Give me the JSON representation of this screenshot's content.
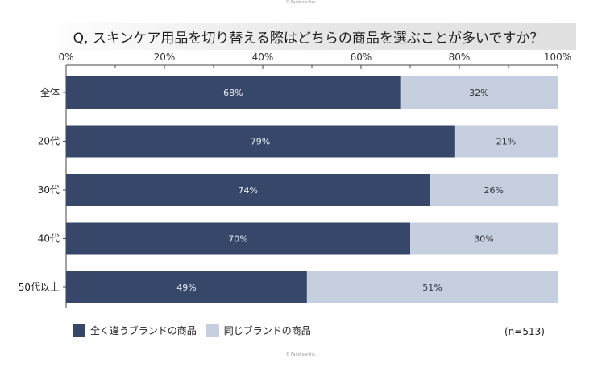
{
  "credit": "© Fandrew Inc.",
  "note": "(n=513)",
  "colors": {
    "series_a": "#36476a",
    "series_b": "#c5cfe0"
  },
  "chart_data": {
    "type": "bar",
    "orientation": "horizontal",
    "stacked": true,
    "title": "Q, スキンケア用品を切り替える際はどちらの商品を選ぶことが多いですか？",
    "categories": [
      "全体",
      "20代",
      "30代",
      "40代",
      "50代以上"
    ],
    "series": [
      {
        "name": "全く違うブランドの商品",
        "values": [
          68,
          79,
          74,
          70,
          49
        ],
        "color": "#36476a"
      },
      {
        "name": "同じブランドの商品",
        "values": [
          32,
          21,
          26,
          30,
          51
        ],
        "color": "#c5cfe0"
      }
    ],
    "xlim": [
      0,
      100
    ],
    "xticks": [
      "0%",
      "20%",
      "40%",
      "60%",
      "80%",
      "100%"
    ],
    "tick_values": [
      0,
      20,
      40,
      60,
      80,
      100
    ],
    "value_suffix": "%",
    "legend_position": "bottom-left",
    "grid": false
  }
}
